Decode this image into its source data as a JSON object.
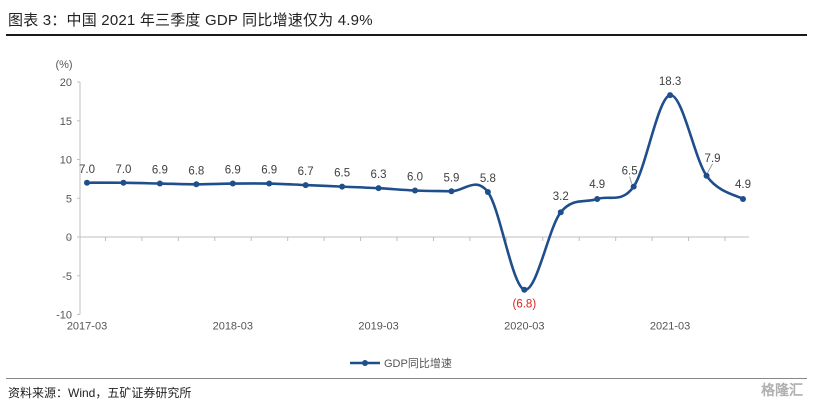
{
  "figure_title": "图表 3：中国 2021 年三季度 GDP 同比增速仅为 4.9%",
  "source_text": "资料来源：Wind，五矿证券研究所",
  "watermark": "格隆汇",
  "chart_data": {
    "type": "line",
    "title": "",
    "xlabel": "",
    "ylabel": "(%)",
    "ylim": [
      -10,
      20
    ],
    "yticks": [
      -10,
      -5,
      0,
      5,
      10,
      15,
      20
    ],
    "xtick_labels": [
      "2017-03",
      "2018-03",
      "2019-03",
      "2020-03",
      "2021-03"
    ],
    "x": [
      "2017-03",
      "2017-06",
      "2017-09",
      "2017-12",
      "2018-03",
      "2018-06",
      "2018-09",
      "2018-12",
      "2019-03",
      "2019-06",
      "2019-09",
      "2019-12",
      "2020-03",
      "2020-06",
      "2020-09",
      "2020-12",
      "2021-03",
      "2021-06",
      "2021-09"
    ],
    "grid": false,
    "legend_position": "bottom-center",
    "series": [
      {
        "name": "GDP同比增速",
        "color": "#1f4e8c",
        "values": [
          7.0,
          7.0,
          6.9,
          6.8,
          6.9,
          6.9,
          6.7,
          6.5,
          6.3,
          6.0,
          5.9,
          5.8,
          -6.8,
          3.2,
          4.9,
          6.5,
          18.3,
          7.9,
          4.9
        ],
        "labels": [
          "7.0",
          "7.0",
          "6.9",
          "6.8",
          "6.9",
          "6.9",
          "6.7",
          "6.5",
          "6.3",
          "6.0",
          "5.9",
          "5.8",
          "(6.8)",
          "3.2",
          "4.9",
          "6.5",
          "18.3",
          "7.9",
          "4.9"
        ]
      }
    ]
  }
}
